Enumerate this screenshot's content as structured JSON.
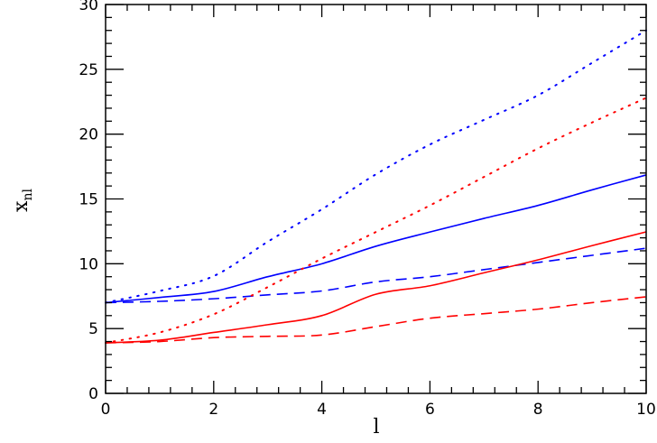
{
  "chart_data": {
    "type": "line",
    "title": "",
    "xlabel": "l",
    "ylabel": "x_nl",
    "ylabel_main": "x",
    "ylabel_sub": "nl",
    "xlim": [
      0,
      10
    ],
    "ylim": [
      0,
      30
    ],
    "grid": false,
    "legend": null,
    "x_major_ticks": [
      0,
      2,
      4,
      6,
      8,
      10
    ],
    "x_minor_step": 0.4,
    "y_major_ticks": [
      0,
      5,
      10,
      15,
      20,
      25,
      30
    ],
    "y_minor_step": 1,
    "x": [
      0,
      1,
      2,
      3,
      4,
      5,
      6,
      7,
      8,
      9,
      10
    ],
    "series": [
      {
        "name": "blue-dotted",
        "color": "#0000ff",
        "style": "dotted",
        "values": [
          7.0,
          7.9,
          9.05,
          11.7,
          14.2,
          16.9,
          19.2,
          21.1,
          23.0,
          25.5,
          28.0
        ]
      },
      {
        "name": "blue-solid",
        "color": "#0000ff",
        "style": "solid",
        "values": [
          7.0,
          7.4,
          7.86,
          9.0,
          10.0,
          11.35,
          12.45,
          13.5,
          14.5,
          15.7,
          16.85
        ]
      },
      {
        "name": "blue-dashed",
        "color": "#0000ff",
        "style": "dashed",
        "values": [
          7.0,
          7.1,
          7.3,
          7.6,
          7.9,
          8.6,
          9.0,
          9.55,
          10.1,
          10.65,
          11.2
        ]
      },
      {
        "name": "red-dotted",
        "color": "#ff0000",
        "style": "dotted",
        "values": [
          3.9,
          4.7,
          6.1,
          8.2,
          10.4,
          12.45,
          14.5,
          16.7,
          18.9,
          20.9,
          22.8
        ]
      },
      {
        "name": "red-solid",
        "color": "#ff0000",
        "style": "solid",
        "values": [
          3.9,
          4.1,
          4.7,
          5.3,
          6.0,
          7.65,
          8.3,
          9.3,
          10.3,
          11.4,
          12.46
        ]
      },
      {
        "name": "red-dashed",
        "color": "#ff0000",
        "style": "dashed",
        "values": [
          3.9,
          4.0,
          4.3,
          4.4,
          4.5,
          5.15,
          5.8,
          6.15,
          6.5,
          7.0,
          7.45
        ]
      }
    ]
  }
}
